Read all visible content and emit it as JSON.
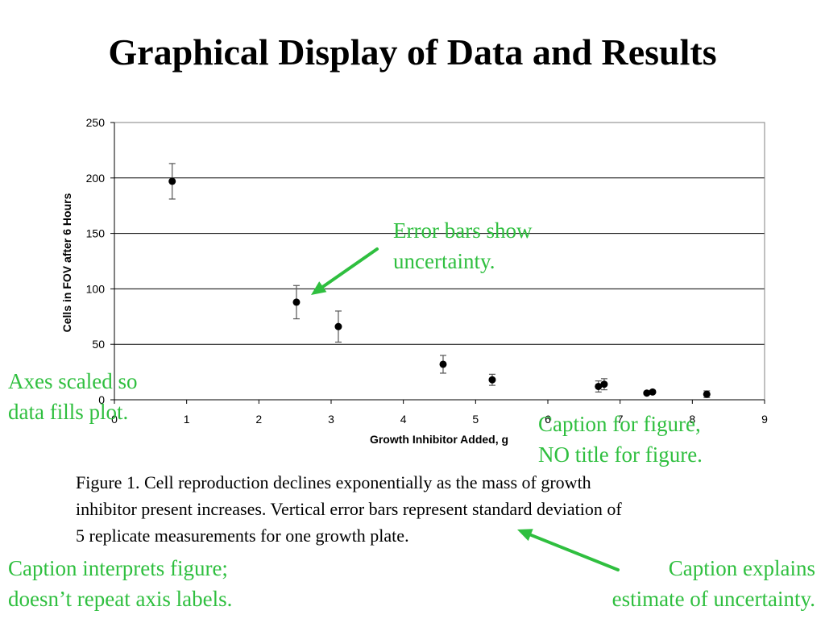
{
  "slide": {
    "title": "Graphical Display of Data and Results"
  },
  "chart_data": {
    "type": "scatter",
    "title": "",
    "xlabel": "Growth Inhibitor Added, g",
    "ylabel": "Cells in FOV after 6 Hours",
    "xlim": [
      0,
      9
    ],
    "ylim": [
      0,
      250
    ],
    "x_ticks": [
      0,
      1,
      2,
      3,
      4,
      5,
      6,
      7,
      8,
      9
    ],
    "y_ticks": [
      0,
      50,
      100,
      150,
      200,
      250
    ],
    "grid": "horizontal",
    "legend": "none",
    "marker_color": "#000000",
    "points": [
      {
        "x": 0.8,
        "y": 197,
        "err": 16
      },
      {
        "x": 2.52,
        "y": 88,
        "err": 15
      },
      {
        "x": 3.1,
        "y": 66,
        "err": 14
      },
      {
        "x": 4.55,
        "y": 32,
        "err": 8
      },
      {
        "x": 5.23,
        "y": 18,
        "err": 5
      },
      {
        "x": 6.7,
        "y": 12,
        "err": 5
      },
      {
        "x": 6.78,
        "y": 14,
        "err": 5
      },
      {
        "x": 7.37,
        "y": 6,
        "err": 1
      },
      {
        "x": 7.45,
        "y": 7,
        "err": 1
      },
      {
        "x": 8.2,
        "y": 5,
        "err": 3
      }
    ]
  },
  "annotations": {
    "color": "#2fbf3f",
    "error_bars": [
      "Error bars show",
      "uncertainty."
    ],
    "axes_scaled": [
      "Axes scaled so",
      "data fills plot."
    ],
    "caption_for_figure": [
      "Caption for figure,",
      "NO title for figure."
    ],
    "caption_interprets": [
      "Caption interprets figure;",
      "doesn’t repeat axis labels."
    ],
    "caption_explains": [
      "Caption explains",
      "estimate of uncertainty."
    ]
  },
  "caption": {
    "lines": [
      "Figure 1.  Cell reproduction declines exponentially as the mass of growth",
      "inhibitor present increases.  Vertical error bars represent standard deviation of",
      "5 replicate measurements for one growth plate."
    ]
  }
}
